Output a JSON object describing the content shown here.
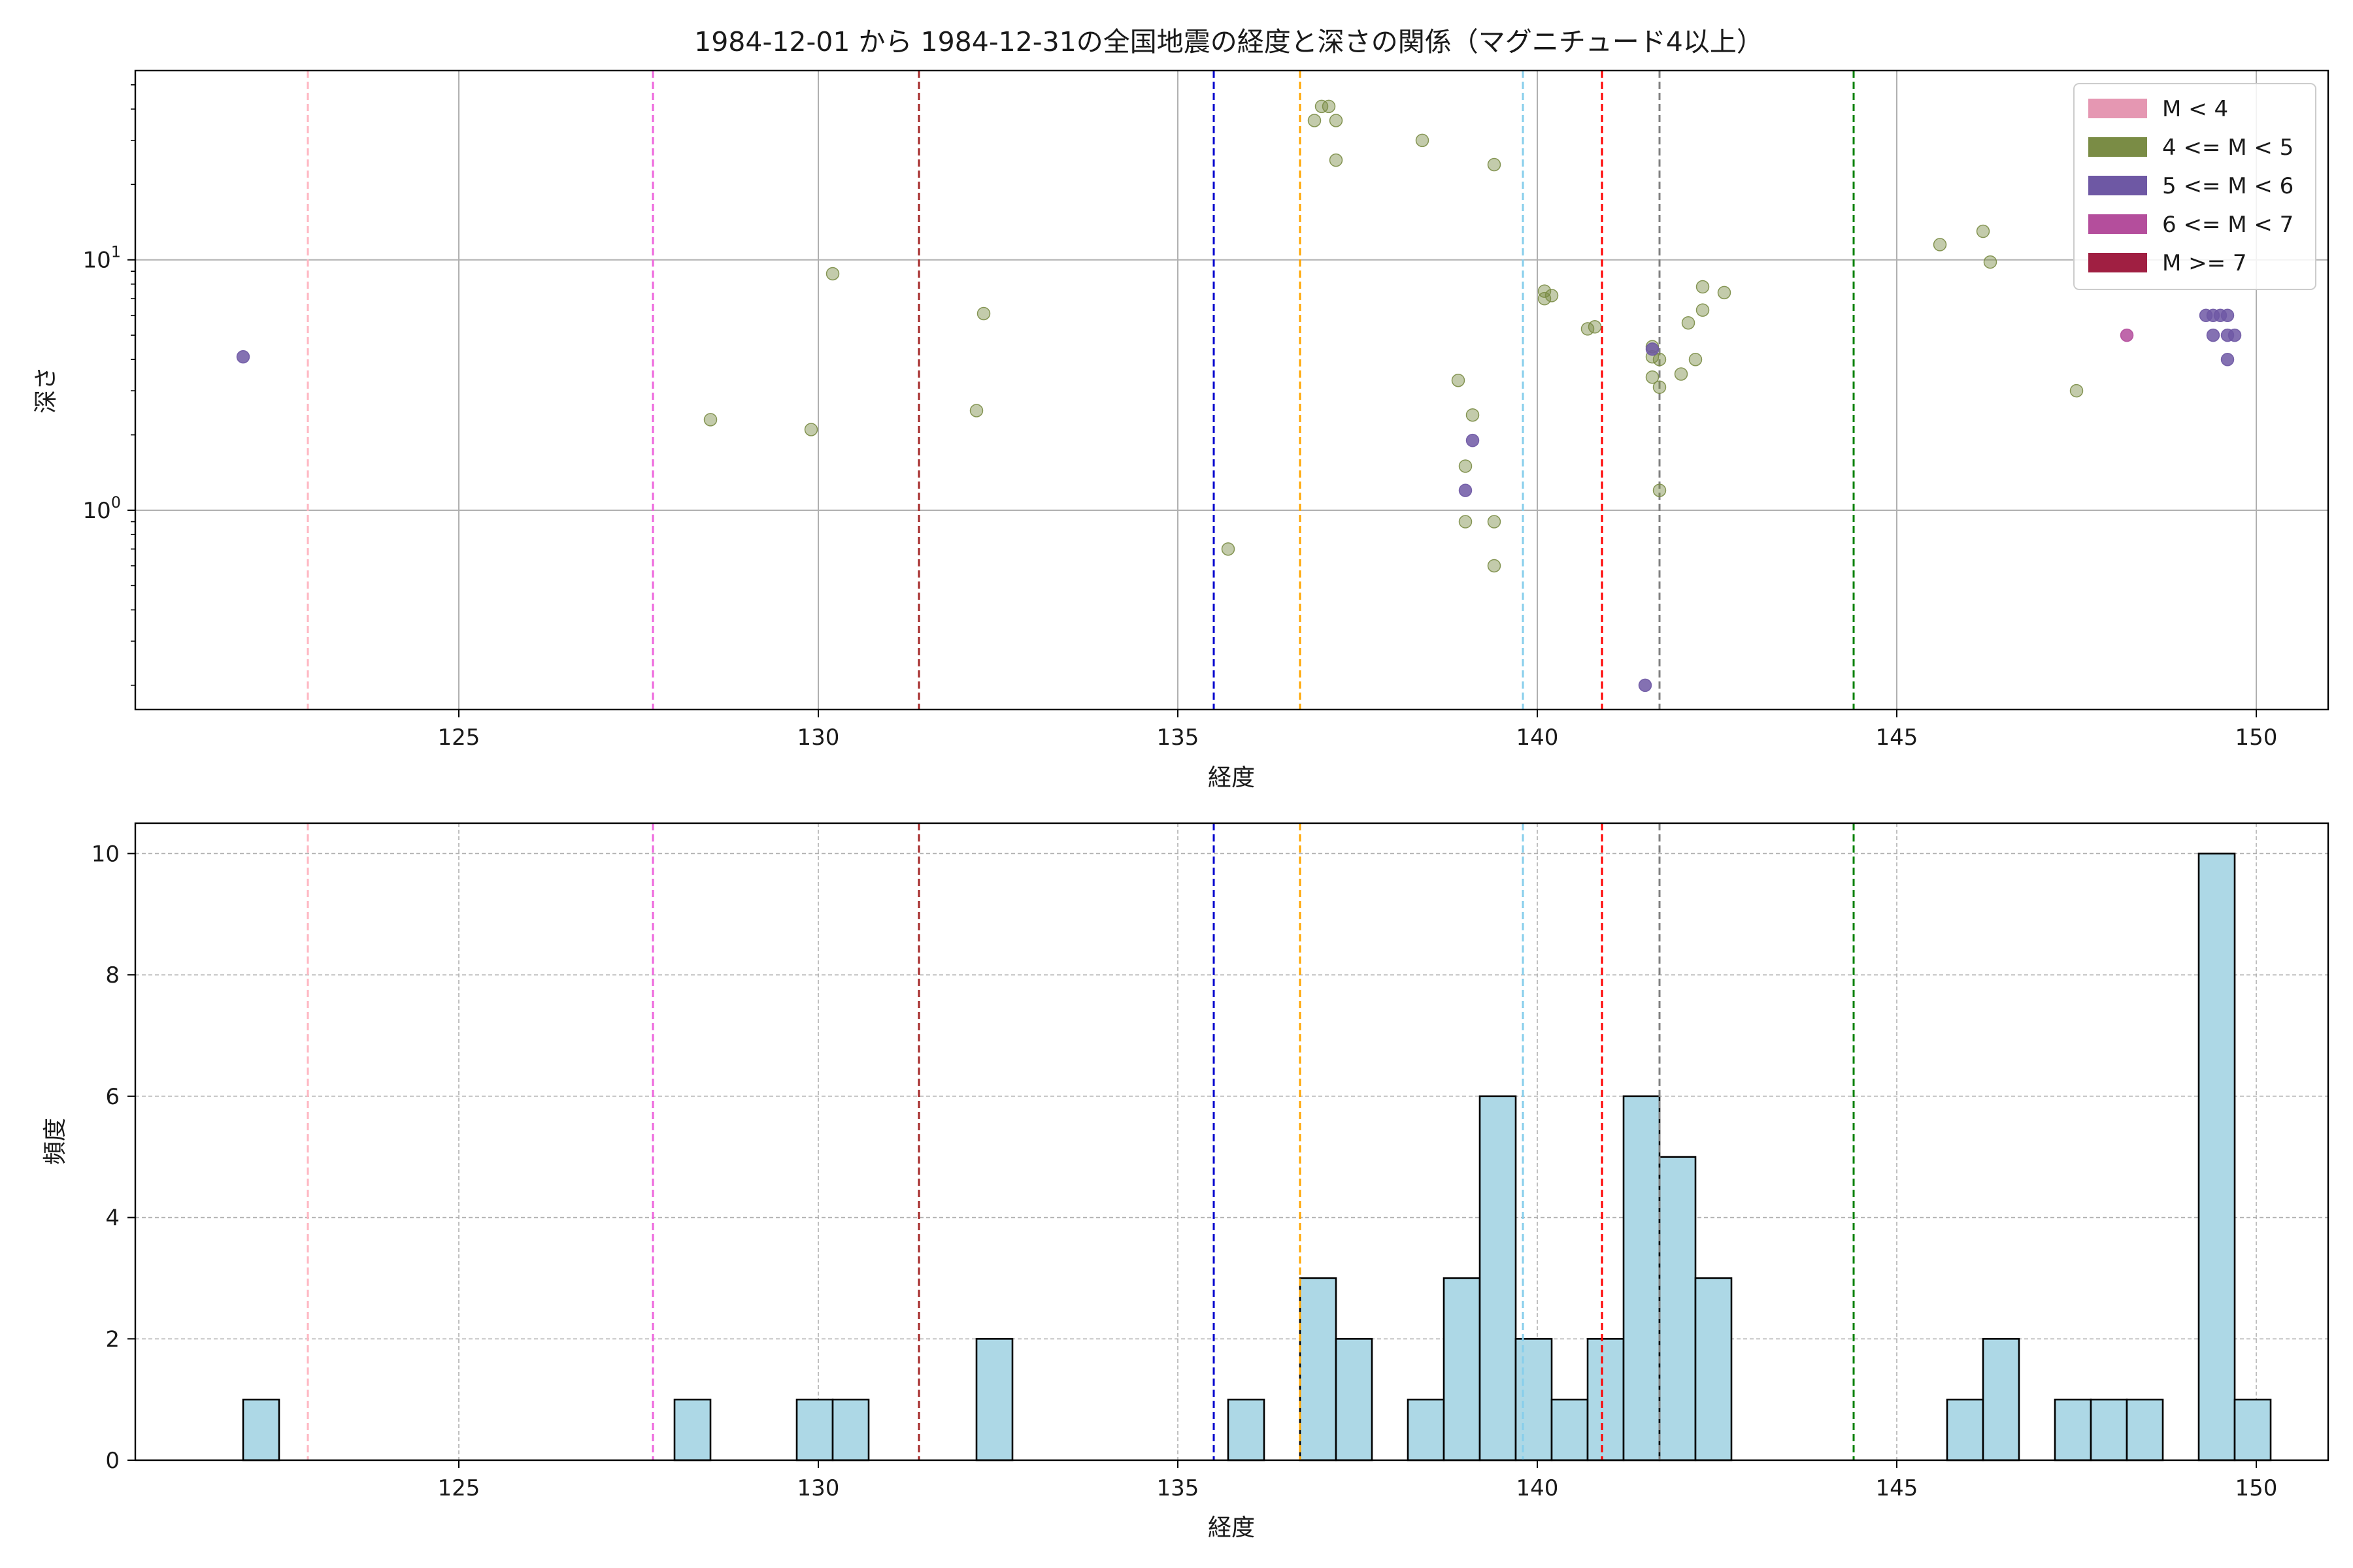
{
  "title": "1984-12-01 から 1984-12-31の全国地震の経度と深さの関係（マグニチュード4以上）",
  "chart_data": [
    {
      "type": "scatter",
      "xlabel": "経度",
      "ylabel": "深さ",
      "xlim": [
        120.5,
        151.0
      ],
      "ylim": [
        57.0,
        0.16
      ],
      "yscale": "log",
      "y_inverted": true,
      "xticks": [
        125,
        130,
        135,
        140,
        145,
        150
      ],
      "yticks": [
        {
          "value": 1,
          "label": "10^0"
        },
        {
          "value": 10,
          "label": "10^1"
        }
      ],
      "grid": true,
      "legend_position": "top-right",
      "legend": [
        {
          "label": "M < 4",
          "color": "#e597b2"
        },
        {
          "label": "4 <= M < 5",
          "color": "#7a8c45"
        },
        {
          "label": "5 <= M < 6",
          "color": "#6e58a4"
        },
        {
          "label": "6 <= M < 7",
          "color": "#b44e9c"
        },
        {
          "label": "M >= 7",
          "color": "#a01f42"
        }
      ],
      "vlines": [
        {
          "x": 122.9,
          "color": "#ffb6c1"
        },
        {
          "x": 127.7,
          "color": "#ee66dd"
        },
        {
          "x": 131.4,
          "color": "#a52a2a"
        },
        {
          "x": 135.5,
          "color": "#0000cd"
        },
        {
          "x": 136.7,
          "color": "#ffa500"
        },
        {
          "x": 139.8,
          "color": "#87ceeb"
        },
        {
          "x": 140.9,
          "color": "#ff0000"
        },
        {
          "x": 141.7,
          "color": "#808080"
        },
        {
          "x": 144.4,
          "color": "#008000"
        }
      ],
      "series": [
        {
          "class": "4-5",
          "color": "#7a8c45",
          "points": [
            [
              128.5,
              2.3
            ],
            [
              129.9,
              2.1
            ],
            [
              130.2,
              8.8
            ],
            [
              132.2,
              2.5
            ],
            [
              132.3,
              6.1
            ],
            [
              135.7,
              0.7
            ],
            [
              136.9,
              36
            ],
            [
              137.0,
              41
            ],
            [
              137.1,
              41
            ],
            [
              137.2,
              36
            ],
            [
              137.2,
              25
            ],
            [
              138.4,
              30
            ],
            [
              138.9,
              3.3
            ],
            [
              139.0,
              0.9
            ],
            [
              139.0,
              1.5
            ],
            [
              139.1,
              2.4
            ],
            [
              139.4,
              0.6
            ],
            [
              139.4,
              0.9
            ],
            [
              139.4,
              24
            ],
            [
              140.1,
              7.5
            ],
            [
              140.1,
              7.0
            ],
            [
              140.2,
              7.2
            ],
            [
              140.7,
              5.3
            ],
            [
              140.8,
              5.4
            ],
            [
              141.6,
              4.5
            ],
            [
              141.6,
              3.4
            ],
            [
              141.6,
              4.1
            ],
            [
              141.7,
              1.2
            ],
            [
              141.7,
              3.1
            ],
            [
              141.7,
              4.0
            ],
            [
              142.0,
              3.5
            ],
            [
              142.1,
              5.6
            ],
            [
              142.2,
              4.0
            ],
            [
              142.3,
              6.3
            ],
            [
              142.3,
              7.8
            ],
            [
              142.6,
              7.4
            ],
            [
              145.6,
              11.5
            ],
            [
              146.2,
              13.0
            ],
            [
              146.3,
              9.8
            ],
            [
              147.5,
              3.0
            ]
          ]
        },
        {
          "class": "5-6",
          "color": "#6e58a4",
          "points": [
            [
              122.0,
              4.1
            ],
            [
              139.0,
              1.2
            ],
            [
              139.1,
              1.9
            ],
            [
              141.5,
              0.2
            ],
            [
              141.6,
              4.4
            ],
            [
              149.3,
              6.0
            ],
            [
              149.4,
              6.0
            ],
            [
              149.4,
              5.0
            ],
            [
              149.5,
              6.0
            ],
            [
              149.6,
              6.0
            ],
            [
              149.6,
              5.0
            ],
            [
              149.6,
              4.0
            ],
            [
              149.7,
              5.0
            ]
          ]
        },
        {
          "class": "6-7",
          "color": "#b44e9c",
          "points": [
            [
              148.2,
              5.0
            ]
          ]
        }
      ]
    },
    {
      "type": "bar",
      "xlabel": "経度",
      "ylabel": "頻度",
      "xlim": [
        120.5,
        151.0
      ],
      "ylim": [
        0,
        10.5
      ],
      "xticks": [
        125,
        130,
        135,
        140,
        145,
        150
      ],
      "yticks": [
        0,
        2,
        4,
        6,
        8,
        10
      ],
      "grid": true,
      "bar_color": "#add8e6",
      "bin_width": 0.5,
      "bins": [
        {
          "x": 122.0,
          "count": 1
        },
        {
          "x": 128.0,
          "count": 1
        },
        {
          "x": 129.7,
          "count": 1
        },
        {
          "x": 130.2,
          "count": 1
        },
        {
          "x": 132.2,
          "count": 2
        },
        {
          "x": 135.7,
          "count": 1
        },
        {
          "x": 136.7,
          "count": 3
        },
        {
          "x": 137.2,
          "count": 2
        },
        {
          "x": 138.2,
          "count": 1
        },
        {
          "x": 138.7,
          "count": 3
        },
        {
          "x": 139.2,
          "count": 6
        },
        {
          "x": 139.7,
          "count": 2
        },
        {
          "x": 140.2,
          "count": 1
        },
        {
          "x": 140.7,
          "count": 2
        },
        {
          "x": 141.2,
          "count": 6
        },
        {
          "x": 141.7,
          "count": 5
        },
        {
          "x": 142.2,
          "count": 3
        },
        {
          "x": 145.7,
          "count": 1
        },
        {
          "x": 146.2,
          "count": 2
        },
        {
          "x": 147.2,
          "count": 1
        },
        {
          "x": 147.7,
          "count": 1
        },
        {
          "x": 148.2,
          "count": 1
        },
        {
          "x": 149.2,
          "count": 10
        },
        {
          "x": 149.7,
          "count": 1
        }
      ],
      "vlines": [
        {
          "x": 122.9,
          "color": "#ffb6c1"
        },
        {
          "x": 127.7,
          "color": "#ee66dd"
        },
        {
          "x": 131.4,
          "color": "#a52a2a"
        },
        {
          "x": 135.5,
          "color": "#0000cd"
        },
        {
          "x": 136.7,
          "color": "#ffa500"
        },
        {
          "x": 139.8,
          "color": "#87ceeb"
        },
        {
          "x": 140.9,
          "color": "#ff0000"
        },
        {
          "x": 141.7,
          "color": "#808080"
        },
        {
          "x": 144.4,
          "color": "#008000"
        }
      ]
    }
  ]
}
